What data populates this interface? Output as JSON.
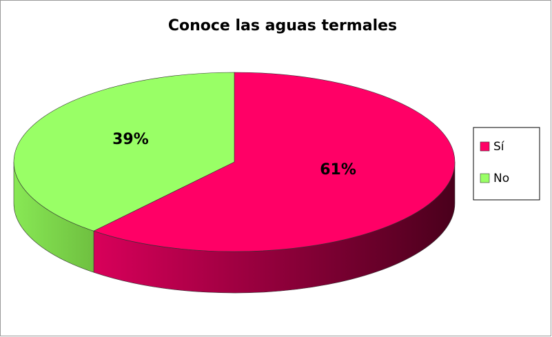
{
  "chart_data": {
    "type": "pie",
    "title": "Conoce las aguas termales",
    "categories": [
      "Sí",
      "No"
    ],
    "values": [
      61,
      39
    ],
    "value_labels": [
      "61%",
      "39%"
    ],
    "colors": [
      "#ff0066",
      "#99ff66"
    ],
    "legend": "right"
  }
}
